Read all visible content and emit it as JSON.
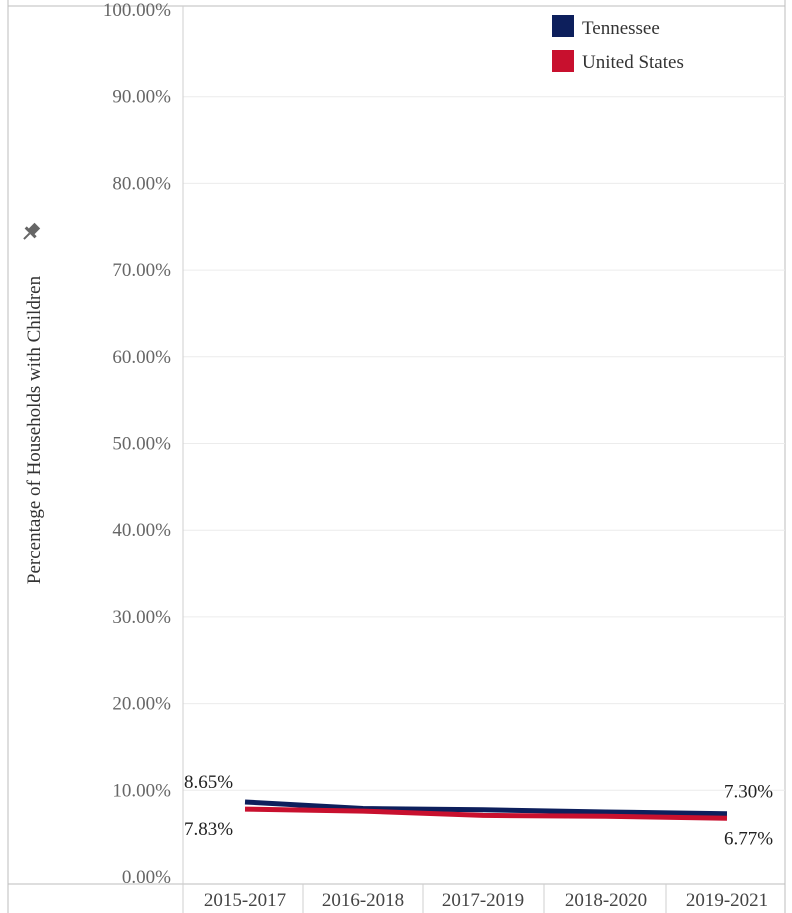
{
  "chart_data": {
    "type": "line",
    "categories": [
      "2015-2017",
      "2016-2018",
      "2017-2019",
      "2018-2020",
      "2019-2021"
    ],
    "series": [
      {
        "name": "Tennessee",
        "color": "#0d1f5c",
        "values": [
          8.65,
          7.9,
          7.75,
          7.5,
          7.3
        ]
      },
      {
        "name": "United States",
        "color": "#c8102e",
        "values": [
          7.83,
          7.6,
          7.1,
          7.0,
          6.77
        ]
      }
    ],
    "ylabel": "Percentage of Households with Children",
    "ylim": [
      0,
      100
    ],
    "yticks": [
      "0.00%",
      "10.00%",
      "20.00%",
      "30.00%",
      "40.00%",
      "50.00%",
      "60.00%",
      "70.00%",
      "80.00%",
      "90.00%",
      "100.00%"
    ],
    "data_labels": {
      "tennessee_first": "8.65%",
      "tennessee_last": "7.30%",
      "us_first": "7.83%",
      "us_last": "6.77%"
    },
    "legend_position": "top-right",
    "grid": true
  },
  "icons": {
    "pin": "pin-icon"
  }
}
